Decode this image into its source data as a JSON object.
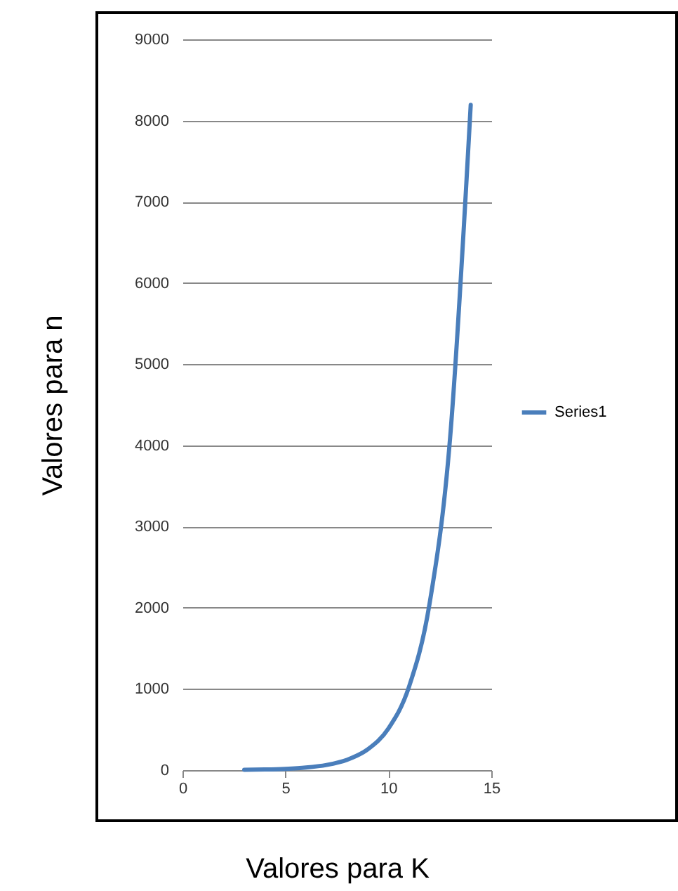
{
  "chart_data": {
    "type": "line",
    "xlabel": "Valores para  K",
    "ylabel": "Valores para  n",
    "x": [
      3,
      4,
      5,
      6,
      7,
      8,
      9,
      10,
      11,
      12,
      13,
      14
    ],
    "series": [
      {
        "name": "Series1",
        "color": "#4a7ebb",
        "values": [
          4,
          8,
          16,
          32,
          64,
          128,
          256,
          512,
          1024,
          2048,
          4096,
          8192
        ]
      }
    ],
    "xlim": [
      0,
      15
    ],
    "xticks": [
      0,
      5,
      10,
      15
    ],
    "ylim": [
      0,
      9000
    ],
    "yticks": [
      0,
      1000,
      2000,
      3000,
      4000,
      5000,
      6000,
      7000,
      8000,
      9000
    ],
    "grid": "y",
    "legend": "right",
    "marker": "none",
    "line_style": "solid"
  }
}
